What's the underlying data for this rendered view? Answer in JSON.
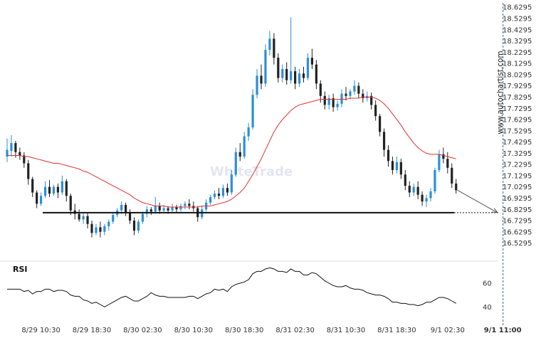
{
  "watermark": "WhiteTrade",
  "side_watermark": "www.autochartist.com",
  "colors": {
    "bull": "#2b8fd9",
    "bear": "#222222",
    "ma": "#e03030",
    "support": "#111111",
    "rsi": "#111111",
    "forecast": "#555555"
  },
  "chart_data": [
    {
      "type": "candlestick",
      "title": "",
      "y_ticks": [
        "18.6295",
        "18.5295",
        "18.4295",
        "18.3295",
        "18.2295",
        "18.1295",
        "18.0295",
        "17.9295",
        "17.8295",
        "17.7295",
        "17.6295",
        "17.5295",
        "17.4295",
        "17.3295",
        "17.2295",
        "17.1295",
        "17.0295",
        "16.9295",
        "16.8295",
        "16.7295",
        "16.6295",
        "16.5295"
      ],
      "ylim": [
        16.47,
        18.65
      ],
      "x_ticks": [
        "8/29 10:30",
        "8/29 18:30",
        "8/30 02:30",
        "8/30 10:30",
        "8/30 18:30",
        "8/31 02:30",
        "8/31 10:30",
        "8/31 18:30",
        "9/1 02:30",
        "9/1 11:00"
      ],
      "x_tick_index": [
        8,
        20,
        32,
        44,
        56,
        68,
        80,
        92,
        104,
        117
      ],
      "candles": [
        [
          17.3,
          17.46,
          17.36,
          17.25
        ],
        [
          17.35,
          17.49,
          17.42,
          17.3
        ],
        [
          17.42,
          17.44,
          17.34,
          17.29
        ],
        [
          17.34,
          17.38,
          17.31,
          17.27
        ],
        [
          17.31,
          17.34,
          17.24,
          17.2
        ],
        [
          17.24,
          17.27,
          17.1,
          17.05
        ],
        [
          17.1,
          17.12,
          16.98,
          16.94
        ],
        [
          16.98,
          17.0,
          16.88,
          16.84
        ],
        [
          16.88,
          16.98,
          16.95,
          16.86
        ],
        [
          16.95,
          17.08,
          17.03,
          16.93
        ],
        [
          17.03,
          17.09,
          16.97,
          16.94
        ],
        [
          16.97,
          17.05,
          17.03,
          16.95
        ],
        [
          17.03,
          17.06,
          16.98,
          16.93
        ],
        [
          16.98,
          17.13,
          17.08,
          16.96
        ],
        [
          17.08,
          17.1,
          16.95,
          16.9
        ],
        [
          16.95,
          16.97,
          16.82,
          16.78
        ],
        [
          16.82,
          16.88,
          16.79,
          16.74
        ],
        [
          16.79,
          16.83,
          16.74,
          16.72
        ],
        [
          16.74,
          16.8,
          16.77,
          16.7
        ],
        [
          16.77,
          16.8,
          16.7,
          16.66
        ],
        [
          16.7,
          16.73,
          16.62,
          16.58
        ],
        [
          16.62,
          16.7,
          16.67,
          16.6
        ],
        [
          16.67,
          16.72,
          16.63,
          16.58
        ],
        [
          16.63,
          16.7,
          16.68,
          16.6
        ],
        [
          16.68,
          16.74,
          16.72,
          16.64
        ],
        [
          16.72,
          16.8,
          16.78,
          16.7
        ],
        [
          16.78,
          16.84,
          16.82,
          16.76
        ],
        [
          16.82,
          16.9,
          16.87,
          16.79
        ],
        [
          16.87,
          16.89,
          16.8,
          16.77
        ],
        [
          16.8,
          16.83,
          16.73,
          16.7
        ],
        [
          16.73,
          16.76,
          16.64,
          16.6
        ],
        [
          16.64,
          16.74,
          16.72,
          16.62
        ],
        [
          16.72,
          16.81,
          16.79,
          16.7
        ],
        [
          16.79,
          16.86,
          16.83,
          16.76
        ],
        [
          16.83,
          16.85,
          16.81,
          16.78
        ],
        [
          16.81,
          16.94,
          16.86,
          16.79
        ],
        [
          16.86,
          16.89,
          16.82,
          16.79
        ],
        [
          16.82,
          16.87,
          16.84,
          16.8
        ],
        [
          16.84,
          16.86,
          16.82,
          16.79
        ],
        [
          16.82,
          16.88,
          16.85,
          16.8
        ],
        [
          16.85,
          16.87,
          16.83,
          16.8
        ],
        [
          16.83,
          16.88,
          16.86,
          16.81
        ],
        [
          16.86,
          16.9,
          16.88,
          16.83
        ],
        [
          16.88,
          16.92,
          16.86,
          16.83
        ],
        [
          16.86,
          16.9,
          16.84,
          16.81
        ],
        [
          16.84,
          16.86,
          16.76,
          16.72
        ],
        [
          16.76,
          16.86,
          16.83,
          16.74
        ],
        [
          16.83,
          16.92,
          16.89,
          16.81
        ],
        [
          16.89,
          16.96,
          16.94,
          16.87
        ],
        [
          16.94,
          17.0,
          16.97,
          16.92
        ],
        [
          16.97,
          17.02,
          16.95,
          16.92
        ],
        [
          16.95,
          17.05,
          17.02,
          16.93
        ],
        [
          17.02,
          17.06,
          16.98,
          16.95
        ],
        [
          16.98,
          17.18,
          17.14,
          16.96
        ],
        [
          17.14,
          17.38,
          17.34,
          17.12
        ],
        [
          17.34,
          17.42,
          17.3,
          17.26
        ],
        [
          17.3,
          17.52,
          17.48,
          17.28
        ],
        [
          17.48,
          17.6,
          17.56,
          17.44
        ],
        [
          17.56,
          17.9,
          17.85,
          17.54
        ],
        [
          17.85,
          18.08,
          18.02,
          17.82
        ],
        [
          18.02,
          18.12,
          17.95,
          17.9
        ],
        [
          17.95,
          18.3,
          18.25,
          17.92
        ],
        [
          18.25,
          18.42,
          18.35,
          18.2
        ],
        [
          18.35,
          18.4,
          18.18,
          18.12
        ],
        [
          18.18,
          18.22,
          18.0,
          17.96
        ],
        [
          18.0,
          18.12,
          18.08,
          17.96
        ],
        [
          18.08,
          18.14,
          17.98,
          17.94
        ],
        [
          17.98,
          18.54,
          18.06,
          17.95
        ],
        [
          18.06,
          18.1,
          17.95,
          17.9
        ],
        [
          17.95,
          18.08,
          18.04,
          17.92
        ],
        [
          18.04,
          18.1,
          18.0,
          17.96
        ],
        [
          18.0,
          18.22,
          18.18,
          17.98
        ],
        [
          18.18,
          18.26,
          18.12,
          18.08
        ],
        [
          18.12,
          18.16,
          17.95,
          17.9
        ],
        [
          17.95,
          17.98,
          17.84,
          17.78
        ],
        [
          17.84,
          17.88,
          17.76,
          17.72
        ],
        [
          17.76,
          17.85,
          17.82,
          17.72
        ],
        [
          17.82,
          17.86,
          17.74,
          17.7
        ],
        [
          17.74,
          17.8,
          17.77,
          17.71
        ],
        [
          17.77,
          17.9,
          17.86,
          17.74
        ],
        [
          17.86,
          17.92,
          17.84,
          17.8
        ],
        [
          17.84,
          17.9,
          17.88,
          17.81
        ],
        [
          17.88,
          17.98,
          17.93,
          17.85
        ],
        [
          17.93,
          17.96,
          17.86,
          17.82
        ],
        [
          17.86,
          17.9,
          17.82,
          17.78
        ],
        [
          17.82,
          17.88,
          17.84,
          17.79
        ],
        [
          17.84,
          17.87,
          17.76,
          17.72
        ],
        [
          17.76,
          17.8,
          17.66,
          17.62
        ],
        [
          17.66,
          17.68,
          17.52,
          17.48
        ],
        [
          17.52,
          17.55,
          17.36,
          17.3
        ],
        [
          17.36,
          17.4,
          17.26,
          17.21
        ],
        [
          17.26,
          17.3,
          17.18,
          17.14
        ],
        [
          17.18,
          17.3,
          17.25,
          17.15
        ],
        [
          17.25,
          17.28,
          17.14,
          17.1
        ],
        [
          17.14,
          17.18,
          17.04,
          17.0
        ],
        [
          17.04,
          17.08,
          16.98,
          16.94
        ],
        [
          16.98,
          17.06,
          17.03,
          16.95
        ],
        [
          17.03,
          17.08,
          16.96,
          16.92
        ],
        [
          16.96,
          16.99,
          16.9,
          16.86
        ],
        [
          16.9,
          16.96,
          16.93,
          16.85
        ],
        [
          16.93,
          17.02,
          16.99,
          16.9
        ],
        [
          16.99,
          17.2,
          17.18,
          16.97
        ],
        [
          17.18,
          17.36,
          17.32,
          17.16
        ],
        [
          17.32,
          17.38,
          17.28,
          17.24
        ],
        [
          17.28,
          17.34,
          17.2,
          17.15
        ],
        [
          17.2,
          17.24,
          17.06,
          17.02
        ],
        [
          17.06,
          17.1,
          17.0,
          16.97
        ]
      ],
      "moving_average": [
        17.31,
        17.31,
        17.31,
        17.31,
        17.3,
        17.3,
        17.29,
        17.28,
        17.27,
        17.26,
        17.25,
        17.24,
        17.24,
        17.23,
        17.22,
        17.21,
        17.2,
        17.19,
        17.17,
        17.16,
        17.14,
        17.12,
        17.1,
        17.08,
        17.06,
        17.04,
        17.02,
        17.0,
        16.98,
        16.96,
        16.93,
        16.91,
        16.89,
        16.88,
        16.87,
        16.86,
        16.86,
        16.86,
        16.85,
        16.85,
        16.85,
        16.85,
        16.85,
        16.85,
        16.85,
        16.85,
        16.86,
        16.86,
        16.86,
        16.87,
        16.88,
        16.89,
        16.9,
        16.92,
        16.95,
        16.98,
        17.02,
        17.08,
        17.14,
        17.21,
        17.28,
        17.36,
        17.44,
        17.52,
        17.58,
        17.63,
        17.67,
        17.71,
        17.74,
        17.76,
        17.77,
        17.78,
        17.79,
        17.8,
        17.81,
        17.81,
        17.81,
        17.81,
        17.81,
        17.81,
        17.81,
        17.82,
        17.82,
        17.82,
        17.83,
        17.83,
        17.83,
        17.82,
        17.8,
        17.77,
        17.73,
        17.68,
        17.63,
        17.58,
        17.52,
        17.47,
        17.42,
        17.38,
        17.35,
        17.33,
        17.32,
        17.32,
        17.32,
        17.31,
        17.3,
        17.29,
        17.28
      ],
      "support_level": 16.8,
      "forecast_target": 16.8
    },
    {
      "type": "line",
      "title": "RSI",
      "y_ticks": [
        "60",
        "40"
      ],
      "ylim": [
        30,
        78
      ],
      "values": [
        55,
        55,
        55,
        55,
        53,
        54,
        51,
        53,
        53,
        55,
        55,
        53,
        54,
        54,
        53,
        50,
        49,
        49,
        46,
        45,
        43,
        44,
        42,
        40,
        42,
        44,
        46,
        48,
        49,
        47,
        45,
        45,
        47,
        49,
        52,
        50,
        49,
        49,
        48,
        48,
        48,
        48,
        48,
        49,
        49,
        47,
        49,
        51,
        52,
        55,
        54,
        55,
        53,
        57,
        59,
        60,
        61,
        63,
        68,
        70,
        70,
        72,
        73,
        72,
        70,
        70,
        69,
        72,
        70,
        70,
        67,
        67,
        69,
        68,
        65,
        62,
        60,
        58,
        57,
        57,
        58,
        56,
        55,
        55,
        54,
        52,
        51,
        50,
        50,
        49,
        47,
        44,
        44,
        43,
        43,
        42,
        42,
        41,
        42,
        44,
        44,
        46,
        48,
        48,
        47,
        45,
        43
      ]
    }
  ]
}
